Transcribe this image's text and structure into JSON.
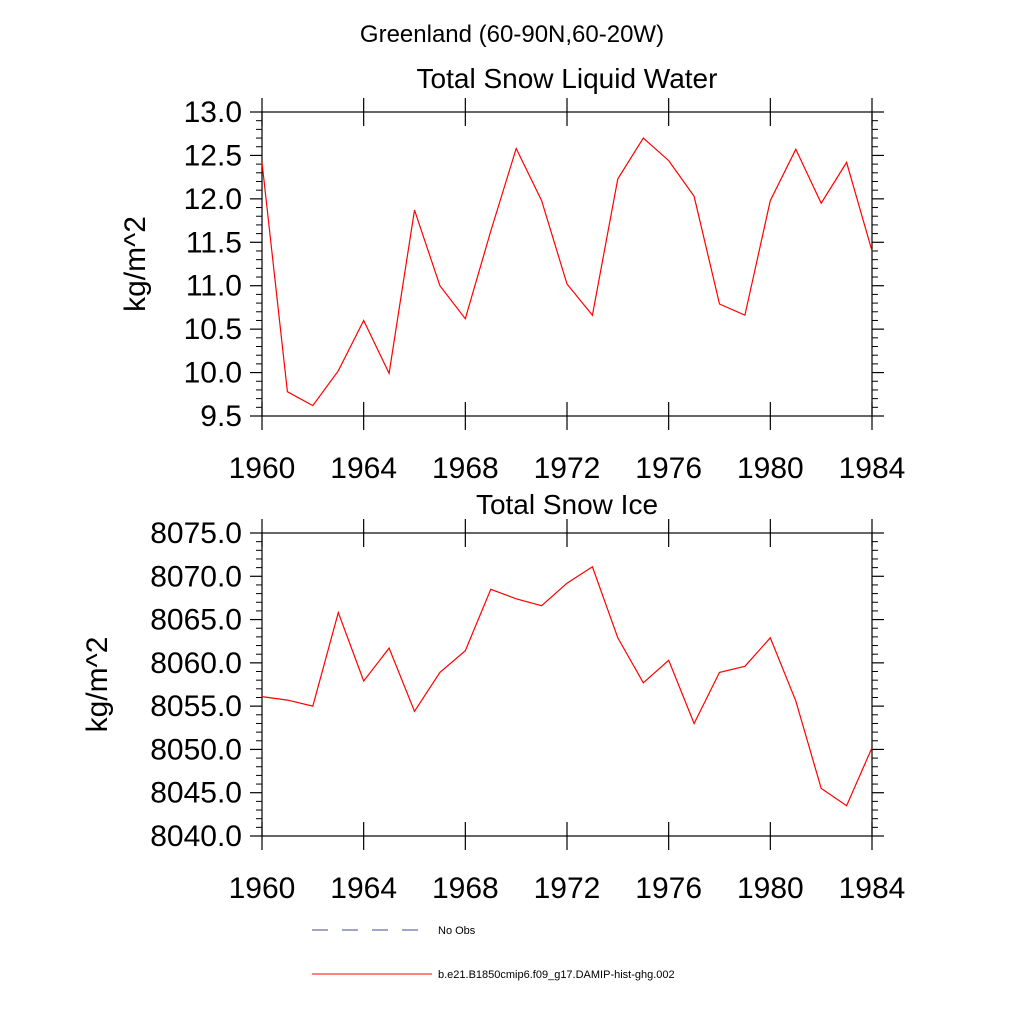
{
  "page_title": "Greenland (60-90N,60-20W)",
  "colors": {
    "model_line": "#ff0000",
    "obs_line": "#4a4a8a",
    "axis": "#000000"
  },
  "legend": {
    "entries": [
      {
        "label": "No Obs",
        "style": "dashed",
        "color": "#4a4a8a"
      },
      {
        "label": "b.e21.B1850cmip6.f09_g17.DAMIP-hist-ghg.002",
        "style": "solid",
        "color": "#ff0000"
      }
    ]
  },
  "chart_data": [
    {
      "type": "line",
      "title": "Total Snow Liquid Water",
      "xlabel": "",
      "ylabel": "kg/m^2",
      "xlim": [
        1960,
        1984
      ],
      "ylim": [
        9.5,
        13.0
      ],
      "x_ticks": [
        "1960",
        "1964",
        "1968",
        "1972",
        "1976",
        "1980",
        "1984"
      ],
      "y_ticks": [
        "9.5",
        "10.0",
        "10.5",
        "11.0",
        "11.5",
        "12.0",
        "12.5",
        "13.0"
      ],
      "grid": false,
      "series": [
        {
          "name": "b.e21.B1850cmip6.f09_g17.DAMIP-hist-ghg.002",
          "x": [
            1960,
            1961,
            1962,
            1963,
            1964,
            1965,
            1966,
            1967,
            1968,
            1969,
            1970,
            1971,
            1972,
            1973,
            1974,
            1975,
            1976,
            1977,
            1978,
            1979,
            1980,
            1981,
            1982,
            1983,
            1984
          ],
          "values": [
            12.42,
            9.78,
            9.62,
            10.02,
            10.6,
            9.99,
            11.87,
            11.0,
            10.62,
            11.63,
            12.58,
            11.98,
            11.02,
            10.66,
            12.23,
            12.7,
            12.44,
            12.03,
            10.79,
            10.66,
            11.98,
            12.57,
            11.95,
            12.42,
            11.4
          ]
        }
      ]
    },
    {
      "type": "line",
      "title": "Total Snow Ice",
      "xlabel": "",
      "ylabel": "kg/m^2",
      "xlim": [
        1960,
        1984
      ],
      "ylim": [
        8040.0,
        8075.0
      ],
      "x_ticks": [
        "1960",
        "1964",
        "1968",
        "1972",
        "1976",
        "1980",
        "1984"
      ],
      "y_ticks": [
        "8040.0",
        "8045.0",
        "8050.0",
        "8055.0",
        "8060.0",
        "8065.0",
        "8070.0",
        "8075.0"
      ],
      "grid": false,
      "series": [
        {
          "name": "b.e21.B1850cmip6.f09_g17.DAMIP-hist-ghg.002",
          "x": [
            1960,
            1961,
            1962,
            1963,
            1964,
            1965,
            1966,
            1967,
            1968,
            1969,
            1970,
            1971,
            1972,
            1973,
            1974,
            1975,
            1976,
            1977,
            1978,
            1979,
            1980,
            1981,
            1982,
            1983,
            1984
          ],
          "values": [
            8056.1,
            8055.7,
            8055.0,
            8065.8,
            8057.9,
            8061.7,
            8054.4,
            8058.9,
            8061.4,
            8068.5,
            8067.4,
            8066.6,
            8069.2,
            8071.1,
            8062.9,
            8057.7,
            8060.3,
            8053.0,
            8058.9,
            8059.6,
            8062.9,
            8055.6,
            8045.5,
            8043.5,
            8050.2
          ]
        }
      ]
    }
  ]
}
